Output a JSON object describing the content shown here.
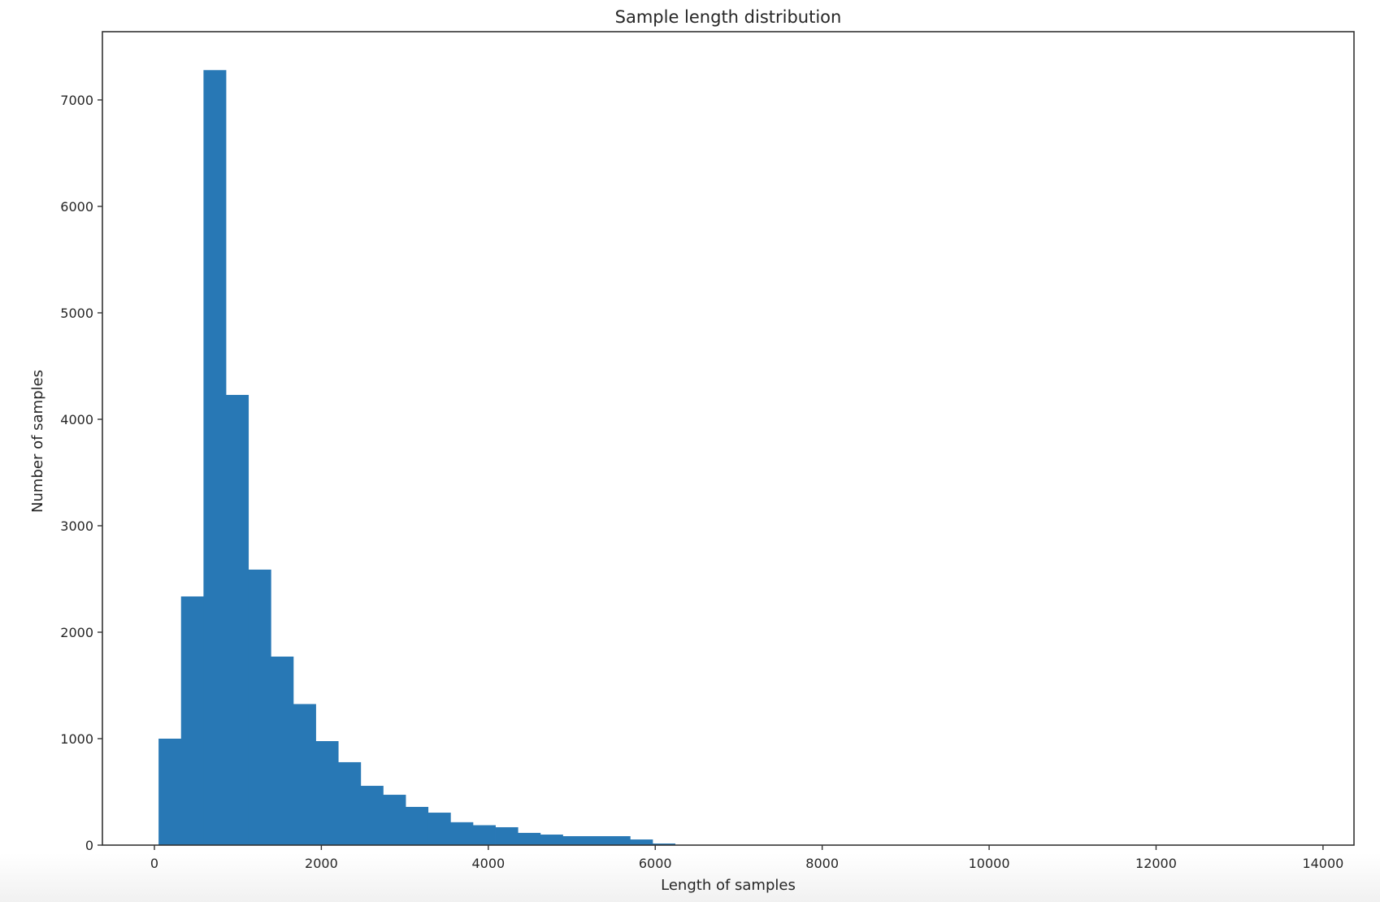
{
  "figure": {
    "background_bottom": "#f1f1f1"
  },
  "chart_data": {
    "type": "bar",
    "subtype": "histogram",
    "title": "Sample length distribution",
    "xlabel": "Length of samples",
    "ylabel": "Number of samples",
    "xlim": [
      -623,
      14371
    ],
    "ylim": [
      0,
      7641
    ],
    "xticks": [
      0,
      2000,
      4000,
      6000,
      8000,
      10000,
      12000,
      14000
    ],
    "xtick_labels": [
      "0",
      "2000",
      "4000",
      "6000",
      "8000",
      "10000",
      "12000",
      "14000"
    ],
    "yticks": [
      0,
      1000,
      2000,
      3000,
      4000,
      5000,
      6000,
      7000
    ],
    "ytick_labels": [
      "0",
      "1000",
      "2000",
      "3000",
      "4000",
      "5000",
      "6000",
      "7000"
    ],
    "grid": false,
    "legend": null,
    "bar_color": "#2878b5",
    "bin_start": 50,
    "bin_width": 269,
    "bins": [
      {
        "x0": 50,
        "x1": 319,
        "count": 1000
      },
      {
        "x0": 319,
        "x1": 588,
        "count": 2336
      },
      {
        "x0": 588,
        "x1": 857,
        "count": 7280
      },
      {
        "x0": 857,
        "x1": 1126,
        "count": 4229
      },
      {
        "x0": 1126,
        "x1": 1395,
        "count": 2588
      },
      {
        "x0": 1395,
        "x1": 1664,
        "count": 1771
      },
      {
        "x0": 1664,
        "x1": 1933,
        "count": 1325
      },
      {
        "x0": 1933,
        "x1": 2202,
        "count": 977
      },
      {
        "x0": 2202,
        "x1": 2471,
        "count": 779
      },
      {
        "x0": 2471,
        "x1": 2740,
        "count": 557
      },
      {
        "x0": 2740,
        "x1": 3009,
        "count": 473
      },
      {
        "x0": 3009,
        "x1": 3278,
        "count": 359
      },
      {
        "x0": 3278,
        "x1": 3547,
        "count": 305
      },
      {
        "x0": 3547,
        "x1": 3816,
        "count": 215
      },
      {
        "x0": 3816,
        "x1": 4085,
        "count": 187
      },
      {
        "x0": 4085,
        "x1": 4354,
        "count": 168
      },
      {
        "x0": 4354,
        "x1": 4623,
        "count": 115
      },
      {
        "x0": 4623,
        "x1": 4892,
        "count": 99
      },
      {
        "x0": 4892,
        "x1": 5161,
        "count": 84
      },
      {
        "x0": 5161,
        "x1": 5430,
        "count": 84
      },
      {
        "x0": 5430,
        "x1": 5699,
        "count": 84
      },
      {
        "x0": 5699,
        "x1": 5968,
        "count": 53
      },
      {
        "x0": 5968,
        "x1": 6237,
        "count": 15
      }
    ]
  }
}
